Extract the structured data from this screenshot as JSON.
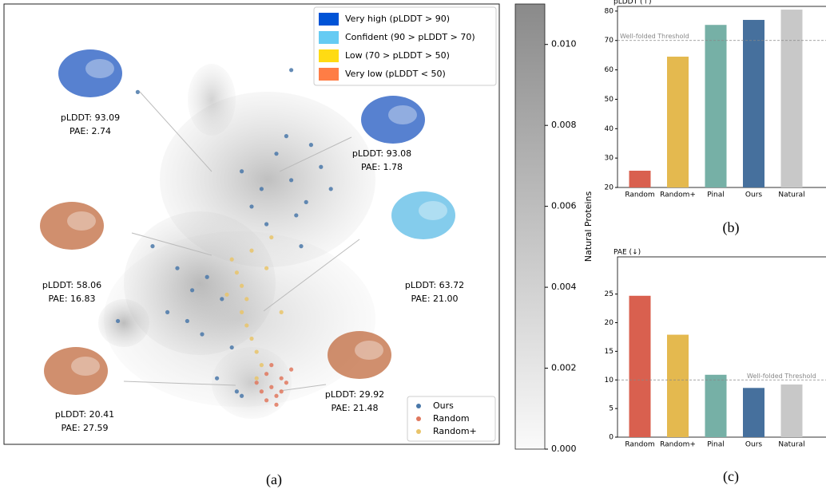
{
  "chart_data": [
    {
      "type": "scatter",
      "caption": "(a)",
      "xlim": [
        0,
        100
      ],
      "ylim": [
        0,
        100
      ],
      "series": [
        {
          "name": "Ours",
          "color": "#4a78a9",
          "x": [
            48,
            52,
            55,
            58,
            61,
            64,
            50,
            57,
            62,
            66,
            53,
            59,
            35,
            38,
            41,
            33,
            37,
            44,
            30,
            40,
            46,
            47,
            48,
            23,
            60,
            27,
            43,
            58
          ],
          "y": [
            62,
            58,
            66,
            60,
            55,
            63,
            54,
            70,
            68,
            58,
            50,
            52,
            40,
            35,
            38,
            30,
            28,
            33,
            45,
            25,
            22,
            12,
            11,
            28,
            45,
            80,
            15,
            85
          ]
        },
        {
          "name": "Random",
          "color": "#e0785e",
          "x": [
            53,
            54,
            55,
            56,
            52,
            57,
            54,
            55,
            53,
            56,
            58,
            51
          ],
          "y": [
            16,
            13,
            11,
            15,
            12,
            14,
            18,
            9,
            10,
            12,
            17,
            14
          ]
        },
        {
          "name": "Random+",
          "color": "#e9c46a",
          "x": [
            46,
            47,
            48,
            49,
            48,
            49,
            50,
            51,
            52,
            51,
            53,
            50,
            45,
            54,
            56
          ],
          "y": [
            42,
            39,
            36,
            33,
            30,
            27,
            24,
            21,
            18,
            15,
            40,
            44,
            34,
            47,
            30
          ]
        }
      ],
      "confidence_legend": [
        {
          "label": "Very high (pLDDT > 90)",
          "color": "#0053d6"
        },
        {
          "label": "Confident (90 > pLDDT > 70)",
          "color": "#65cbf3"
        },
        {
          "label": "Low (70 > pLDDT > 50)",
          "color": "#ffdb13"
        },
        {
          "label": "Very low (pLDDT < 50)",
          "color": "#ff7d45"
        }
      ],
      "annotations": [
        {
          "plddt": "pLDDT: 93.09",
          "pae": "PAE: 2.74",
          "color": "#1f57c0"
        },
        {
          "plddt": "pLDDT: 93.08",
          "pae": "PAE: 1.78",
          "color": "#1f57c0"
        },
        {
          "plddt": "pLDDT: 58.06",
          "pae": "PAE: 16.83",
          "color": "#c06a3e"
        },
        {
          "plddt": "pLDDT: 63.72",
          "pae": "PAE: 21.00",
          "color": "#5bbbe6"
        },
        {
          "plddt": "pLDDT: 20.41",
          "pae": "PAE: 27.59",
          "color": "#c06a3e"
        },
        {
          "plddt": "pLDDT: 29.92",
          "pae": "PAE: 21.48",
          "color": "#c06a3e"
        }
      ]
    },
    {
      "type": "colorbar",
      "label": "Natural Proteins",
      "ylim": [
        0,
        0.011
      ],
      "yticks": [
        {
          "value": 0,
          "label": "0.000"
        },
        {
          "value": 0.002,
          "label": "0.002"
        },
        {
          "value": 0.004,
          "label": "0.004"
        },
        {
          "value": 0.006,
          "label": "0.006"
        },
        {
          "value": 0.008,
          "label": "0.008"
        },
        {
          "value": 0.01,
          "label": "0.010"
        }
      ]
    },
    {
      "type": "bar",
      "ylabel": "pLDDT (↑)",
      "caption": "(b)",
      "categories": [
        "Random",
        "Random+",
        "Pinal",
        "Ours",
        "Natural"
      ],
      "values": [
        25.7,
        64.5,
        75.3,
        77,
        80.5
      ],
      "colors": [
        "#d9604f",
        "#e4b94f",
        "#76b0a6",
        "#46709d",
        "#c8c8c8"
      ],
      "ylim": [
        20,
        81.6
      ],
      "yticks": [
        20,
        30,
        40,
        50,
        60,
        70,
        80
      ],
      "threshold": 70,
      "threshold_label": "Well-folded Threshold"
    },
    {
      "type": "bar",
      "ylabel": "PAE (↓)",
      "caption": "(c)",
      "categories": [
        "Random",
        "Random+",
        "Pinal",
        "Ours",
        "Natural"
      ],
      "values": [
        24.7,
        17.9,
        10.9,
        8.6,
        9.2
      ],
      "colors": [
        "#d9604f",
        "#e4b94f",
        "#76b0a6",
        "#46709d",
        "#c8c8c8"
      ],
      "ylim": [
        0,
        31.5
      ],
      "yticks": [
        0,
        5,
        10,
        15,
        20,
        25
      ],
      "threshold": 10,
      "threshold_label": "Well-folded Threshold"
    }
  ]
}
